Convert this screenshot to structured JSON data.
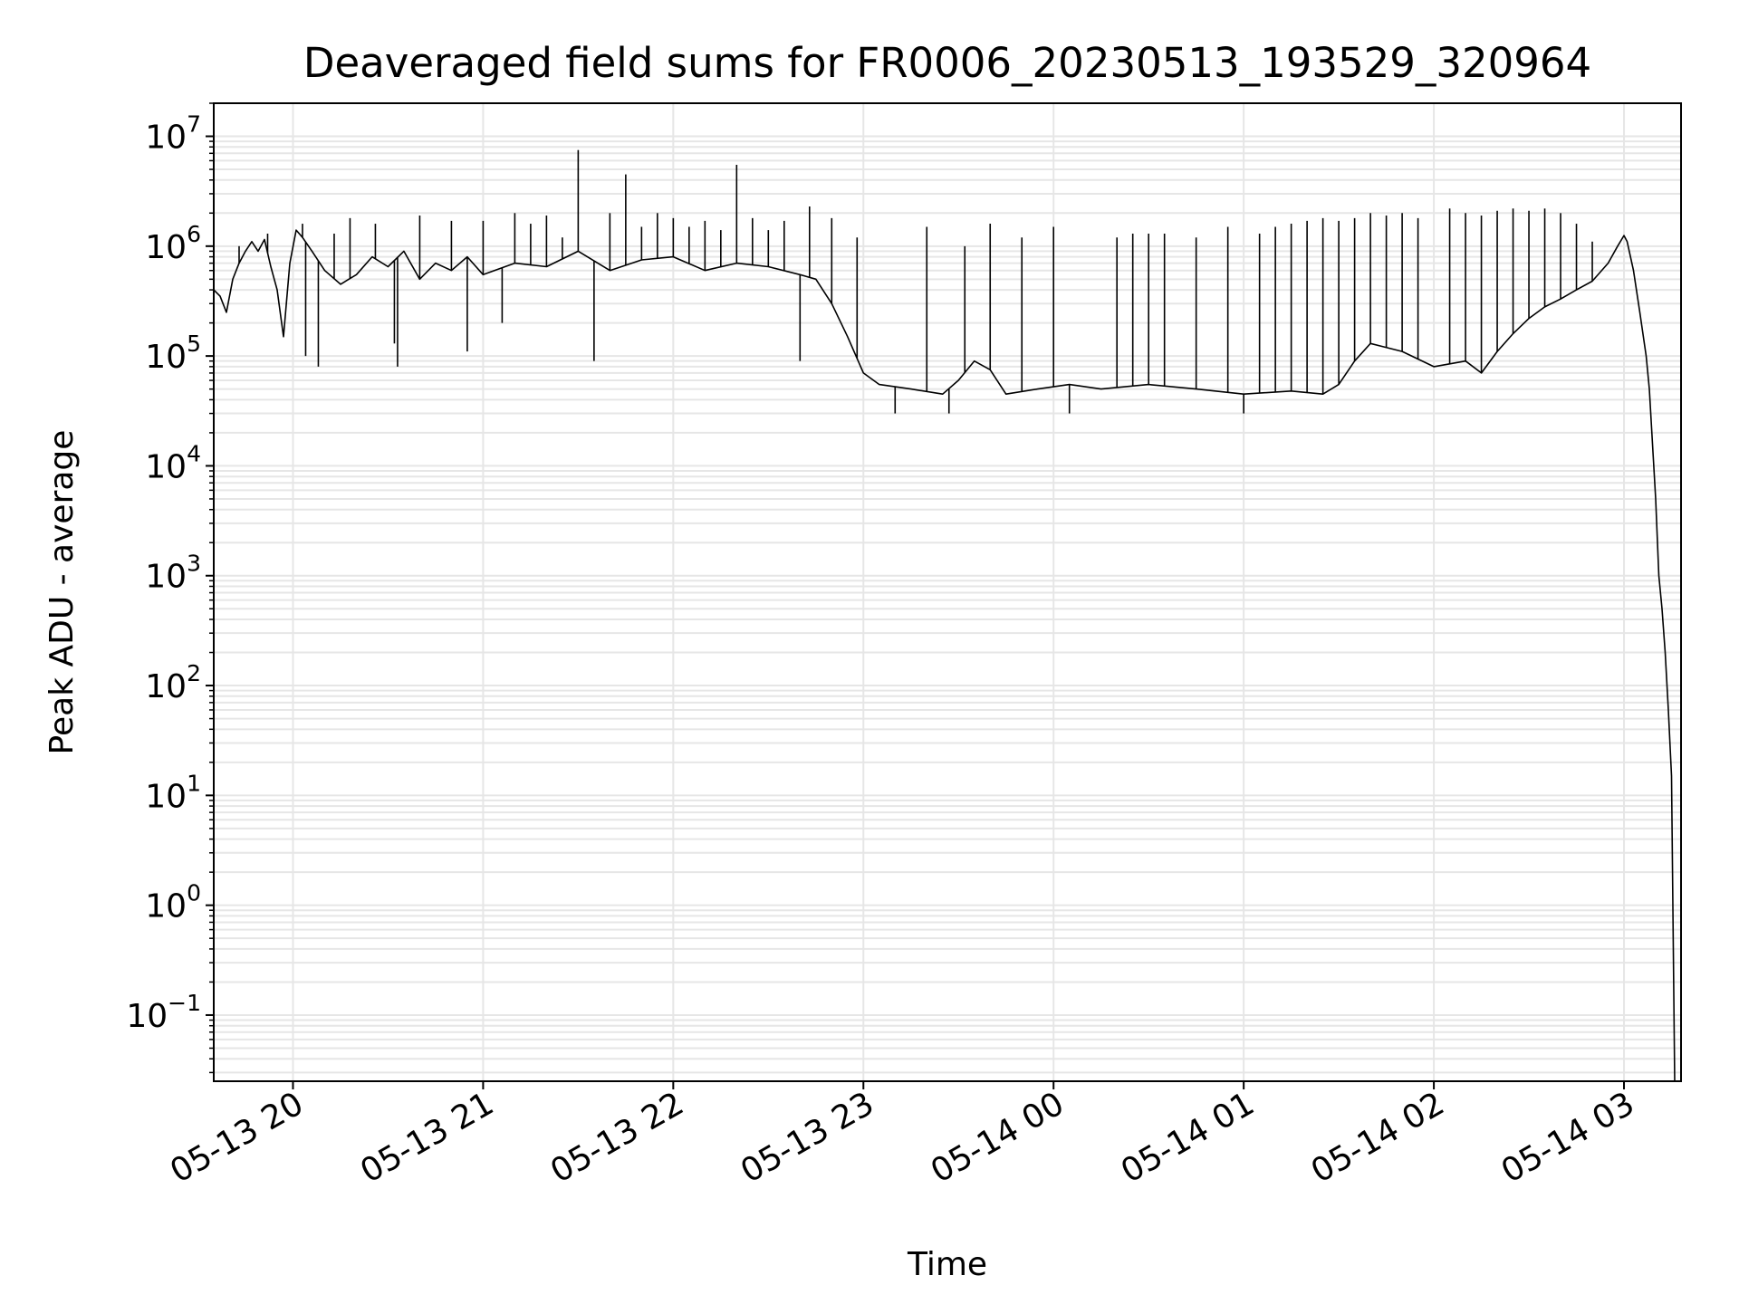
{
  "chart_data": {
    "type": "line",
    "title": "Deaveraged field sums for FR0006_20230513_193529_320964",
    "xlabel": "Time",
    "ylabel": "Peak ADU - average",
    "y_scale": "log",
    "ylim": [
      0.025,
      20000000.0
    ],
    "xlim": [
      "2023-05-13 19:35",
      "2023-05-14 03:18"
    ],
    "grid": true,
    "x_tick_labels": [
      "05-13 20",
      "05-13 21",
      "05-13 22",
      "05-13 23",
      "05-14 00",
      "05-14 01",
      "05-14 02",
      "05-14 03"
    ],
    "y_tick_labels": [
      {
        "base": "10",
        "exp": "7"
      },
      {
        "base": "10",
        "exp": "6"
      },
      {
        "base": "10",
        "exp": "5"
      },
      {
        "base": "10",
        "exp": "4"
      },
      {
        "base": "10",
        "exp": "3"
      },
      {
        "base": "10",
        "exp": "2"
      },
      {
        "base": "10",
        "exp": "1"
      },
      {
        "base": "10",
        "exp": "0"
      },
      {
        "base": "10",
        "exp": "−1"
      }
    ],
    "line_color": "#000000",
    "series": [
      {
        "points": [
          [
            "2023-05-13 19:35",
            400000
          ],
          [
            "2023-05-13 19:37",
            350000
          ],
          [
            "2023-05-13 19:39",
            250000
          ],
          [
            "2023-05-13 19:41",
            500000
          ],
          [
            "2023-05-13 19:43",
            700000
          ],
          [
            "2023-05-13 19:45",
            900000
          ],
          [
            "2023-05-13 19:47",
            1100000
          ],
          [
            "2023-05-13 19:49",
            900000
          ],
          [
            "2023-05-13 19:51",
            1150000
          ],
          [
            "2023-05-13 19:53",
            650000
          ],
          [
            "2023-05-13 19:55",
            400000
          ],
          [
            "2023-05-13 19:57",
            150000
          ],
          [
            "2023-05-13 19:59",
            700000
          ],
          [
            "2023-05-13 20:01",
            1400000
          ],
          [
            "2023-05-13 20:03",
            1200000
          ],
          [
            "2023-05-13 20:06",
            900000
          ],
          [
            "2023-05-13 20:10",
            600000
          ],
          [
            "2023-05-13 20:15",
            450000
          ],
          [
            "2023-05-13 20:20",
            550000
          ],
          [
            "2023-05-13 20:25",
            800000
          ],
          [
            "2023-05-13 20:30",
            650000
          ],
          [
            "2023-05-13 20:35",
            900000
          ],
          [
            "2023-05-13 20:40",
            500000
          ],
          [
            "2023-05-13 20:45",
            700000
          ],
          [
            "2023-05-13 20:50",
            600000
          ],
          [
            "2023-05-13 20:55",
            800000
          ],
          [
            "2023-05-13 21:00",
            550000
          ],
          [
            "2023-05-13 21:10",
            700000
          ],
          [
            "2023-05-13 21:20",
            650000
          ],
          [
            "2023-05-13 21:30",
            900000
          ],
          [
            "2023-05-13 21:40",
            600000
          ],
          [
            "2023-05-13 21:50",
            750000
          ],
          [
            "2023-05-13 22:00",
            800000
          ],
          [
            "2023-05-13 22:10",
            600000
          ],
          [
            "2023-05-13 22:20",
            700000
          ],
          [
            "2023-05-13 22:30",
            650000
          ],
          [
            "2023-05-13 22:40",
            550000
          ],
          [
            "2023-05-13 22:45",
            500000
          ],
          [
            "2023-05-13 22:50",
            300000
          ],
          [
            "2023-05-13 22:55",
            150000
          ],
          [
            "2023-05-13 23:00",
            70000
          ],
          [
            "2023-05-13 23:05",
            55000
          ],
          [
            "2023-05-13 23:15",
            50000
          ],
          [
            "2023-05-13 23:25",
            45000
          ],
          [
            "2023-05-13 23:30",
            60000
          ],
          [
            "2023-05-13 23:35",
            90000
          ],
          [
            "2023-05-13 23:40",
            75000
          ],
          [
            "2023-05-13 23:45",
            45000
          ],
          [
            "2023-05-13 23:55",
            50000
          ],
          [
            "2023-05-14 00:05",
            55000
          ],
          [
            "2023-05-14 00:15",
            50000
          ],
          [
            "2023-05-14 00:30",
            55000
          ],
          [
            "2023-05-14 00:45",
            50000
          ],
          [
            "2023-05-14 01:00",
            45000
          ],
          [
            "2023-05-14 01:15",
            48000
          ],
          [
            "2023-05-14 01:25",
            45000
          ],
          [
            "2023-05-14 01:30",
            55000
          ],
          [
            "2023-05-14 01:35",
            90000
          ],
          [
            "2023-05-14 01:40",
            130000
          ],
          [
            "2023-05-14 01:50",
            110000
          ],
          [
            "2023-05-14 02:00",
            80000
          ],
          [
            "2023-05-14 02:10",
            90000
          ],
          [
            "2023-05-14 02:15",
            70000
          ],
          [
            "2023-05-14 02:20",
            110000
          ],
          [
            "2023-05-14 02:25",
            160000
          ],
          [
            "2023-05-14 02:30",
            220000
          ],
          [
            "2023-05-14 02:35",
            280000
          ],
          [
            "2023-05-14 02:40",
            330000
          ],
          [
            "2023-05-14 02:45",
            400000
          ],
          [
            "2023-05-14 02:50",
            480000
          ],
          [
            "2023-05-14 02:55",
            700000
          ],
          [
            "2023-05-14 02:58",
            1000000
          ],
          [
            "2023-05-14 03:00",
            1250000
          ],
          [
            "2023-05-14 03:01",
            1100000
          ],
          [
            "2023-05-14 03:03",
            600000
          ],
          [
            "2023-05-14 03:05",
            250000
          ],
          [
            "2023-05-14 03:07",
            100000
          ],
          [
            "2023-05-14 03:08",
            50000
          ],
          [
            "2023-05-14 03:10",
            5000
          ],
          [
            "2023-05-14 03:11",
            1000
          ],
          [
            "2023-05-14 03:12",
            500
          ],
          [
            "2023-05-14 03:13",
            200
          ],
          [
            "2023-05-14 03:14",
            60
          ],
          [
            "2023-05-14 03:15",
            15
          ],
          [
            "2023-05-14 03:16",
            0.025
          ]
        ],
        "spikes": [
          [
            "2023-05-13 19:43",
            1000000
          ],
          [
            "2023-05-13 19:52",
            1300000
          ],
          [
            "2023-05-13 20:03",
            1600000
          ],
          [
            "2023-05-13 20:04",
            100000
          ],
          [
            "2023-05-13 20:08",
            80000
          ],
          [
            "2023-05-13 20:13",
            1300000
          ],
          [
            "2023-05-13 20:18",
            1800000
          ],
          [
            "2023-05-13 20:26",
            1600000
          ],
          [
            "2023-05-13 20:32",
            130000
          ],
          [
            "2023-05-13 20:33",
            80000
          ],
          [
            "2023-05-13 20:40",
            1900000
          ],
          [
            "2023-05-13 20:50",
            1700000
          ],
          [
            "2023-05-13 20:55",
            110000
          ],
          [
            "2023-05-13 21:00",
            1700000
          ],
          [
            "2023-05-13 21:06",
            200000
          ],
          [
            "2023-05-13 21:10",
            2000000
          ],
          [
            "2023-05-13 21:15",
            1600000
          ],
          [
            "2023-05-13 21:20",
            1900000
          ],
          [
            "2023-05-13 21:25",
            1200000
          ],
          [
            "2023-05-13 21:30",
            7500000
          ],
          [
            "2023-05-13 21:35",
            90000
          ],
          [
            "2023-05-13 21:40",
            2000000
          ],
          [
            "2023-05-13 21:45",
            4500000
          ],
          [
            "2023-05-13 21:50",
            1500000
          ],
          [
            "2023-05-13 21:55",
            2000000
          ],
          [
            "2023-05-13 22:00",
            1800000
          ],
          [
            "2023-05-13 22:05",
            1500000
          ],
          [
            "2023-05-13 22:10",
            1700000
          ],
          [
            "2023-05-13 22:15",
            1400000
          ],
          [
            "2023-05-13 22:20",
            5500000
          ],
          [
            "2023-05-13 22:25",
            1800000
          ],
          [
            "2023-05-13 22:30",
            1400000
          ],
          [
            "2023-05-13 22:35",
            1700000
          ],
          [
            "2023-05-13 22:40",
            90000
          ],
          [
            "2023-05-13 22:43",
            2300000
          ],
          [
            "2023-05-13 22:50",
            1800000
          ],
          [
            "2023-05-13 22:58",
            1200000
          ],
          [
            "2023-05-13 23:10",
            30000
          ],
          [
            "2023-05-13 23:20",
            1500000
          ],
          [
            "2023-05-13 23:27",
            30000
          ],
          [
            "2023-05-13 23:32",
            1000000
          ],
          [
            "2023-05-13 23:40",
            1600000
          ],
          [
            "2023-05-13 23:50",
            1200000
          ],
          [
            "2023-05-14 00:00",
            1500000
          ],
          [
            "2023-05-14 00:05",
            30000
          ],
          [
            "2023-05-14 00:20",
            1200000
          ],
          [
            "2023-05-14 00:25",
            1300000
          ],
          [
            "2023-05-14 00:30",
            1300000
          ],
          [
            "2023-05-14 00:35",
            1300000
          ],
          [
            "2023-05-14 00:45",
            1200000
          ],
          [
            "2023-05-14 00:55",
            1500000
          ],
          [
            "2023-05-14 01:00",
            30000
          ],
          [
            "2023-05-14 01:05",
            1300000
          ],
          [
            "2023-05-14 01:10",
            1500000
          ],
          [
            "2023-05-14 01:15",
            1600000
          ],
          [
            "2023-05-14 01:20",
            1700000
          ],
          [
            "2023-05-14 01:25",
            1800000
          ],
          [
            "2023-05-14 01:30",
            1700000
          ],
          [
            "2023-05-14 01:35",
            1800000
          ],
          [
            "2023-05-14 01:40",
            2000000
          ],
          [
            "2023-05-14 01:45",
            1900000
          ],
          [
            "2023-05-14 01:50",
            2000000
          ],
          [
            "2023-05-14 01:55",
            1800000
          ],
          [
            "2023-05-14 02:05",
            2200000
          ],
          [
            "2023-05-14 02:10",
            2000000
          ],
          [
            "2023-05-14 02:15",
            1900000
          ],
          [
            "2023-05-14 02:20",
            2100000
          ],
          [
            "2023-05-14 02:25",
            2200000
          ],
          [
            "2023-05-14 02:30",
            2100000
          ],
          [
            "2023-05-14 02:35",
            2200000
          ],
          [
            "2023-05-14 02:40",
            2000000
          ],
          [
            "2023-05-14 02:45",
            1600000
          ],
          [
            "2023-05-14 02:50",
            1100000
          ]
        ]
      }
    ]
  }
}
